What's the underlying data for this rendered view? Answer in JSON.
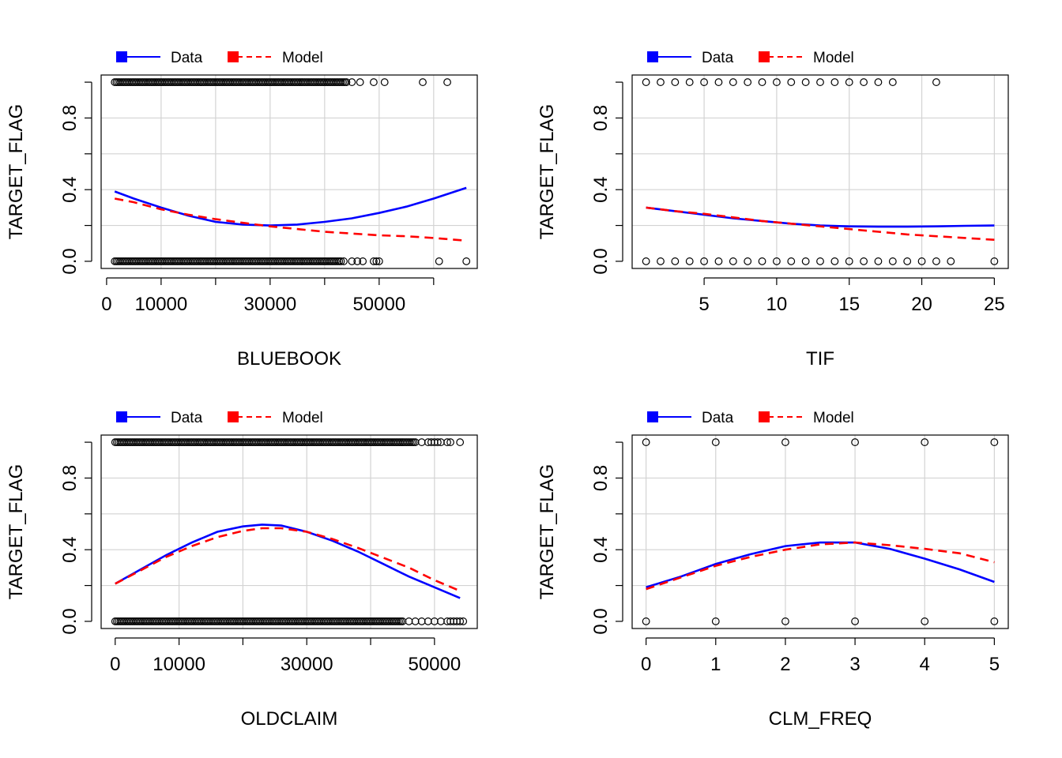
{
  "legend": {
    "data_label": "Data",
    "model_label": "Model"
  },
  "colors": {
    "data": "#0000ff",
    "model": "#ff0000",
    "grid": "#d3d3d3",
    "points": "#000000"
  },
  "chart_data": [
    {
      "type": "scatter",
      "xlabel": "BLUEBOOK",
      "ylabel": "TARGET_FLAG",
      "xlim": [
        -1000,
        68000
      ],
      "ylim": [
        -0.04,
        1.04
      ],
      "x_ticks": [
        0,
        10000,
        20000,
        30000,
        40000,
        50000,
        60000
      ],
      "x_tick_labels": [
        "0",
        "10000",
        "",
        "30000",
        "",
        "50000",
        ""
      ],
      "y_ticks": [
        0,
        0.2,
        0.4,
        0.6,
        0.8,
        1
      ],
      "y_tick_labels": [
        "0.0",
        "",
        "0.4",
        "",
        "0.8",
        ""
      ],
      "x_grid": [
        10000,
        20000,
        30000,
        40000,
        50000,
        60000
      ],
      "y_grid": [
        0.2,
        0.4,
        0.6,
        0.8
      ],
      "points_y1": {
        "dense_range": [
          1500,
          44000
        ],
        "extra": [
          45000,
          46500,
          49000,
          51000,
          58000,
          62500
        ]
      },
      "points_y0": {
        "dense_range": [
          1500,
          43000
        ],
        "extra": [
          43500,
          45000,
          46000,
          47000,
          49000,
          49500,
          50000,
          61000,
          66000
        ]
      },
      "series": [
        {
          "name": "Data",
          "x": [
            1500,
            5000,
            10000,
            15000,
            20000,
            25000,
            30000,
            35000,
            40000,
            45000,
            50000,
            55000,
            60000,
            66000
          ],
          "y": [
            0.39,
            0.35,
            0.3,
            0.255,
            0.22,
            0.205,
            0.2,
            0.205,
            0.22,
            0.24,
            0.27,
            0.305,
            0.35,
            0.41
          ]
        },
        {
          "name": "Model",
          "x": [
            1500,
            5000,
            10000,
            15000,
            20000,
            25000,
            30000,
            35000,
            40000,
            45000,
            50000,
            55000,
            60000,
            66000
          ],
          "y": [
            0.35,
            0.33,
            0.29,
            0.26,
            0.235,
            0.215,
            0.195,
            0.18,
            0.165,
            0.155,
            0.145,
            0.14,
            0.13,
            0.115
          ]
        }
      ]
    },
    {
      "type": "scatter",
      "xlabel": "TIF",
      "ylabel": "TARGET_FLAG",
      "xlim": [
        0.04,
        25.96
      ],
      "ylim": [
        -0.04,
        1.04
      ],
      "x_ticks": [
        5,
        10,
        15,
        20,
        25
      ],
      "x_tick_labels": [
        "5",
        "10",
        "15",
        "20",
        "25"
      ],
      "y_ticks": [
        0,
        0.2,
        0.4,
        0.6,
        0.8,
        1
      ],
      "y_tick_labels": [
        "0.0",
        "",
        "0.4",
        "",
        "0.8",
        ""
      ],
      "x_grid": [
        5,
        10,
        15,
        20,
        25
      ],
      "y_grid": [
        0.2,
        0.4,
        0.6,
        0.8
      ],
      "points_y1": {
        "x": [
          1,
          2,
          3,
          4,
          5,
          6,
          7,
          8,
          9,
          10,
          11,
          12,
          13,
          14,
          15,
          16,
          17,
          18,
          21
        ]
      },
      "points_y0": {
        "x": [
          1,
          2,
          3,
          4,
          5,
          6,
          7,
          8,
          9,
          10,
          11,
          12,
          13,
          14,
          15,
          16,
          17,
          18,
          19,
          20,
          21,
          22,
          25
        ]
      },
      "series": [
        {
          "name": "Data",
          "x": [
            1,
            3,
            5,
            7,
            9,
            11,
            13,
            15,
            17,
            19,
            21,
            23,
            25
          ],
          "y": [
            0.3,
            0.28,
            0.26,
            0.24,
            0.225,
            0.21,
            0.2,
            0.195,
            0.193,
            0.193,
            0.195,
            0.198,
            0.2
          ]
        },
        {
          "name": "Model",
          "x": [
            1,
            3,
            5,
            7,
            9,
            11,
            13,
            15,
            17,
            19,
            21,
            23,
            25
          ],
          "y": [
            0.3,
            0.28,
            0.265,
            0.245,
            0.225,
            0.21,
            0.195,
            0.18,
            0.165,
            0.15,
            0.14,
            0.13,
            0.12
          ]
        }
      ]
    },
    {
      "type": "scatter",
      "xlabel": "OLDCLAIM",
      "ylabel": "TARGET_FLAG",
      "xlim": [
        -2200,
        56700
      ],
      "ylim": [
        -0.04,
        1.04
      ],
      "x_ticks": [
        0,
        10000,
        20000,
        30000,
        40000,
        50000
      ],
      "x_tick_labels": [
        "0",
        "10000",
        "",
        "30000",
        "",
        "50000"
      ],
      "y_ticks": [
        0,
        0.2,
        0.4,
        0.6,
        0.8,
        1
      ],
      "y_tick_labels": [
        "0.0",
        "",
        "0.4",
        "",
        "0.8",
        ""
      ],
      "x_grid": [
        10000,
        20000,
        30000,
        40000,
        50000
      ],
      "y_grid": [
        0.2,
        0.4,
        0.6,
        0.8
      ],
      "points_y1": {
        "dense_range": [
          0,
          47000
        ],
        "extra": [
          48000,
          49000,
          49500,
          50000,
          50500,
          51000,
          52000,
          52500,
          54000
        ]
      },
      "points_y0": {
        "dense_range": [
          0,
          45000
        ],
        "extra": [
          46000,
          47000,
          48000,
          49000,
          50000,
          51000,
          52000,
          52500,
          53000,
          53500,
          54000,
          54500
        ]
      },
      "series": [
        {
          "name": "Data",
          "x": [
            0,
            4000,
            8000,
            12000,
            16000,
            20000,
            23000,
            26000,
            30000,
            34000,
            38000,
            42000,
            46000,
            50000,
            54000
          ],
          "y": [
            0.21,
            0.29,
            0.37,
            0.44,
            0.5,
            0.53,
            0.54,
            0.535,
            0.5,
            0.45,
            0.39,
            0.32,
            0.25,
            0.19,
            0.13
          ]
        },
        {
          "name": "Model",
          "x": [
            0,
            4000,
            8000,
            12000,
            16000,
            20000,
            23000,
            26000,
            30000,
            34000,
            38000,
            42000,
            46000,
            50000,
            54000
          ],
          "y": [
            0.21,
            0.285,
            0.36,
            0.42,
            0.47,
            0.505,
            0.52,
            0.52,
            0.5,
            0.46,
            0.41,
            0.355,
            0.3,
            0.23,
            0.17
          ]
        }
      ]
    },
    {
      "type": "scatter",
      "xlabel": "CLM_FREQ",
      "ylabel": "TARGET_FLAG",
      "xlim": [
        -0.2,
        5.2
      ],
      "ylim": [
        -0.04,
        1.04
      ],
      "x_ticks": [
        0,
        1,
        2,
        3,
        4,
        5
      ],
      "x_tick_labels": [
        "0",
        "1",
        "2",
        "3",
        "4",
        "5"
      ],
      "y_ticks": [
        0,
        0.2,
        0.4,
        0.6,
        0.8,
        1
      ],
      "y_tick_labels": [
        "0.0",
        "",
        "0.4",
        "",
        "0.8",
        ""
      ],
      "x_grid": [
        0,
        1,
        2,
        3,
        4,
        5
      ],
      "y_grid": [
        0.2,
        0.4,
        0.6,
        0.8
      ],
      "points_y1": {
        "x": [
          0,
          1,
          2,
          3,
          4,
          5
        ]
      },
      "points_y0": {
        "x": [
          0,
          1,
          2,
          3,
          4,
          5
        ]
      },
      "series": [
        {
          "name": "Data",
          "x": [
            0,
            0.5,
            1,
            1.5,
            2,
            2.5,
            3,
            3.5,
            4,
            4.5,
            5
          ],
          "y": [
            0.19,
            0.25,
            0.32,
            0.375,
            0.42,
            0.44,
            0.44,
            0.405,
            0.35,
            0.29,
            0.22
          ]
        },
        {
          "name": "Model",
          "x": [
            0,
            0.5,
            1,
            1.5,
            2,
            2.5,
            3,
            3.5,
            4,
            4.5,
            5
          ],
          "y": [
            0.18,
            0.245,
            0.31,
            0.36,
            0.4,
            0.43,
            0.44,
            0.425,
            0.405,
            0.38,
            0.33
          ]
        }
      ]
    }
  ]
}
